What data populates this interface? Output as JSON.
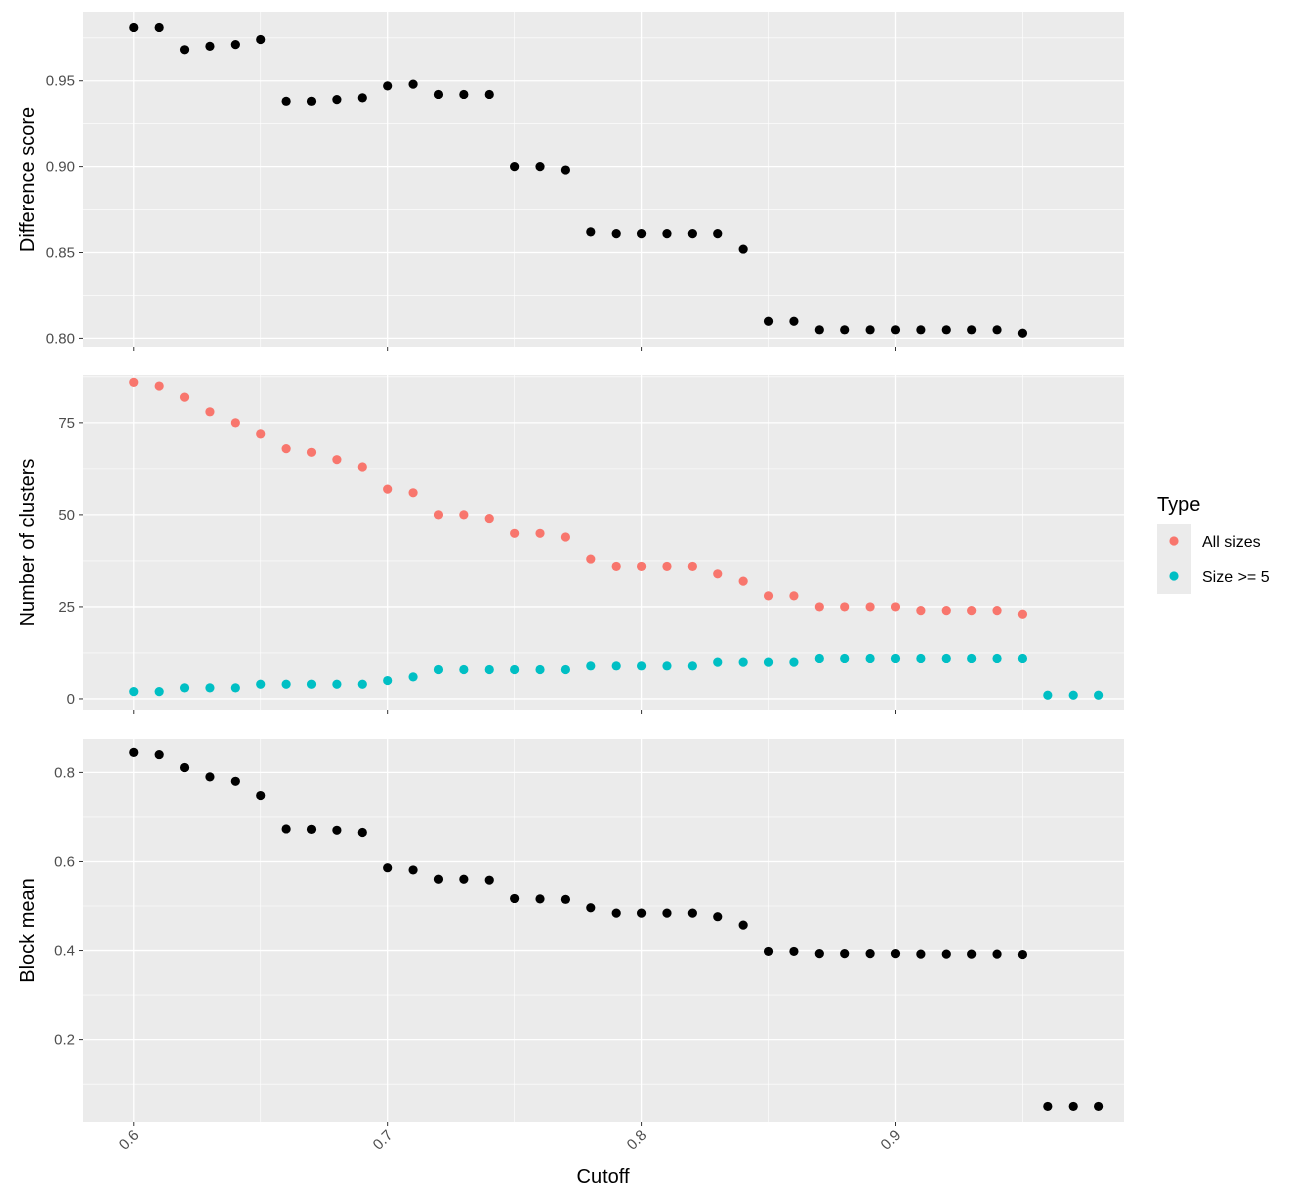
{
  "chart_data": {
    "type": "scatter",
    "xlabel": "Cutoff",
    "x_ticks": [
      0.6,
      0.7,
      0.8,
      0.9
    ],
    "xlim": [
      0.58,
      0.99
    ],
    "legend": {
      "title": "Type",
      "placement": "right",
      "entries": [
        {
          "name": "All sizes",
          "color": "#f8766d"
        },
        {
          "name": "Size >= 5",
          "color": "#00bfc4"
        }
      ]
    },
    "panels": [
      {
        "ylabel": "Difference score",
        "ylim": [
          0.795,
          0.99
        ],
        "y_ticks": [
          0.8,
          0.85,
          0.9,
          0.95
        ],
        "y_tick_labels": [
          "0.80",
          "0.85",
          "0.90",
          "0.95"
        ],
        "series": [
          {
            "color": "#000000",
            "x": [
              0.6,
              0.61,
              0.62,
              0.63,
              0.64,
              0.65,
              0.66,
              0.67,
              0.68,
              0.69,
              0.7,
              0.71,
              0.72,
              0.73,
              0.74,
              0.75,
              0.76,
              0.77,
              0.78,
              0.79,
              0.8,
              0.81,
              0.82,
              0.83,
              0.84,
              0.85,
              0.86,
              0.87,
              0.88,
              0.89,
              0.9,
              0.91,
              0.92,
              0.93,
              0.94,
              0.95
            ],
            "y": [
              0.981,
              0.981,
              0.968,
              0.97,
              0.971,
              0.974,
              0.938,
              0.938,
              0.939,
              0.94,
              0.947,
              0.948,
              0.942,
              0.942,
              0.942,
              0.9,
              0.9,
              0.898,
              0.862,
              0.861,
              0.861,
              0.861,
              0.861,
              0.861,
              0.852,
              0.81,
              0.81,
              0.805,
              0.805,
              0.805,
              0.805,
              0.805,
              0.805,
              0.805,
              0.805,
              0.803
            ]
          }
        ]
      },
      {
        "ylabel": "Number of clusters",
        "ylim": [
          -3,
          88
        ],
        "y_ticks": [
          0,
          25,
          50,
          75
        ],
        "y_tick_labels": [
          "0",
          "25",
          "50",
          "75"
        ],
        "series": [
          {
            "name": "All sizes",
            "color": "#f8766d",
            "x": [
              0.6,
              0.61,
              0.62,
              0.63,
              0.64,
              0.65,
              0.66,
              0.67,
              0.68,
              0.69,
              0.7,
              0.71,
              0.72,
              0.73,
              0.74,
              0.75,
              0.76,
              0.77,
              0.78,
              0.79,
              0.8,
              0.81,
              0.82,
              0.83,
              0.84,
              0.85,
              0.86,
              0.87,
              0.88,
              0.89,
              0.9,
              0.91,
              0.92,
              0.93,
              0.94,
              0.95
            ],
            "y": [
              86,
              85,
              82,
              78,
              75,
              72,
              68,
              67,
              65,
              63,
              57,
              56,
              50,
              50,
              49,
              45,
              45,
              44,
              38,
              36,
              36,
              36,
              36,
              34,
              32,
              28,
              28,
              25,
              25,
              25,
              25,
              24,
              24,
              24,
              24,
              23
            ]
          },
          {
            "name": "Size >= 5",
            "color": "#00bfc4",
            "x": [
              0.6,
              0.61,
              0.62,
              0.63,
              0.64,
              0.65,
              0.66,
              0.67,
              0.68,
              0.69,
              0.7,
              0.71,
              0.72,
              0.73,
              0.74,
              0.75,
              0.76,
              0.77,
              0.78,
              0.79,
              0.8,
              0.81,
              0.82,
              0.83,
              0.84,
              0.85,
              0.86,
              0.87,
              0.88,
              0.89,
              0.9,
              0.91,
              0.92,
              0.93,
              0.94,
              0.95,
              0.96,
              0.97,
              0.98
            ],
            "y": [
              2,
              2,
              3,
              3,
              3,
              4,
              4,
              4,
              4,
              4,
              5,
              6,
              8,
              8,
              8,
              8,
              8,
              8,
              9,
              9,
              9,
              9,
              9,
              10,
              10,
              10,
              10,
              11,
              11,
              11,
              11,
              11,
              11,
              11,
              11,
              11,
              1,
              1,
              1
            ]
          }
        ]
      },
      {
        "ylabel": "Block mean",
        "ylim": [
          0.015,
          0.875
        ],
        "y_ticks": [
          0.2,
          0.4,
          0.6,
          0.8
        ],
        "y_tick_labels": [
          "0.2",
          "0.4",
          "0.6",
          "0.8"
        ],
        "series": [
          {
            "color": "#000000",
            "x": [
              0.6,
              0.61,
              0.62,
              0.63,
              0.64,
              0.65,
              0.66,
              0.67,
              0.68,
              0.69,
              0.7,
              0.71,
              0.72,
              0.73,
              0.74,
              0.75,
              0.76,
              0.77,
              0.78,
              0.79,
              0.8,
              0.81,
              0.82,
              0.83,
              0.84,
              0.85,
              0.86,
              0.87,
              0.88,
              0.89,
              0.9,
              0.91,
              0.92,
              0.93,
              0.94,
              0.95,
              0.96,
              0.97,
              0.98
            ],
            "y": [
              0.845,
              0.84,
              0.811,
              0.79,
              0.78,
              0.748,
              0.673,
              0.672,
              0.67,
              0.665,
              0.586,
              0.581,
              0.56,
              0.56,
              0.558,
              0.517,
              0.516,
              0.515,
              0.496,
              0.484,
              0.484,
              0.484,
              0.484,
              0.476,
              0.457,
              0.398,
              0.398,
              0.393,
              0.393,
              0.393,
              0.393,
              0.392,
              0.392,
              0.392,
              0.392,
              0.391,
              0.05,
              0.05,
              0.05
            ]
          }
        ]
      }
    ]
  }
}
